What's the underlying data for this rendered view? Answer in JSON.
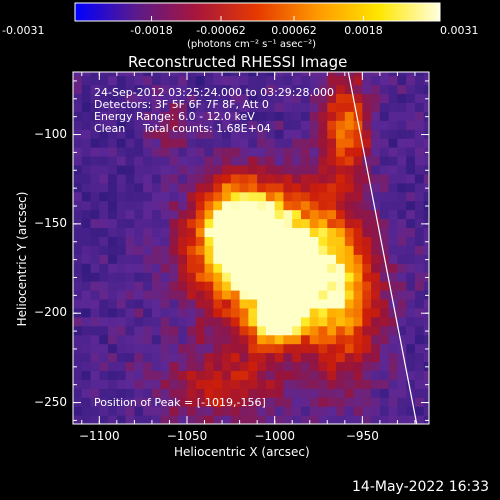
{
  "chart_data": {
    "type": "heatmap",
    "title": "Reconstructed RHESSI Image",
    "colorbar": {
      "min": -0.0031,
      "max": 0.0031,
      "tick_values": [
        -0.0031,
        -0.0018,
        -0.00062,
        0.00062,
        0.0018,
        0.0031
      ],
      "tick_labels": [
        "-0.0031",
        "-0.0018",
        "-0.00062",
        "0.00062",
        "0.0018",
        "0.0031"
      ],
      "units_label": "(photons cm⁻² s⁻¹ asec⁻²)",
      "colors": [
        "#0000ff",
        "#5a1a8c",
        "#a8163c",
        "#e63a00",
        "#ff9a00",
        "#ffe600",
        "#ffffe0"
      ]
    },
    "xlabel": "Heliocentric X (arcsec)",
    "ylabel": "Heliocentric Y (arcsec)",
    "xlim": [
      -1115,
      -912
    ],
    "ylim": [
      -262,
      -65
    ],
    "x_ticks": [
      -1100,
      -1050,
      -1000,
      -950
    ],
    "x_tick_labels": [
      "−1100",
      "−1050",
      "−1000",
      "−950"
    ],
    "y_ticks": [
      -100,
      -150,
      -200,
      -250
    ],
    "y_tick_labels": [
      "−100",
      "−150",
      "−200",
      "−250"
    ],
    "annotations": {
      "time_range": "24-Sep-2012 03:25:24.000 to 03:29:28.000",
      "detectors": "Detectors: 3F 5F 6F 7F 8F, Att 0",
      "energy": "Energy Range: 6.0 - 12.0 keV",
      "clean_label": "Clean",
      "total_counts": "Total counts: 1.68E+04",
      "peak_position": "Position of Peak = [-1019,-156]"
    },
    "peak": {
      "x": -1019,
      "y": -156
    },
    "limb_line": {
      "x": [
        -958,
        -919
      ],
      "y": [
        -65,
        -262
      ]
    },
    "source_blobs": [
      {
        "x": -1020,
        "y": -152,
        "amp": 1.0,
        "sx": 18,
        "sy": 20
      },
      {
        "x": -1005,
        "y": -180,
        "amp": 0.55,
        "sx": 30,
        "sy": 22
      },
      {
        "x": -1000,
        "y": -205,
        "amp": 0.6,
        "sx": 12,
        "sy": 10
      },
      {
        "x": -980,
        "y": -165,
        "amp": 0.5,
        "sx": 20,
        "sy": 28
      },
      {
        "x": -960,
        "y": -200,
        "amp": 0.45,
        "sx": 15,
        "sy": 30
      },
      {
        "x": -960,
        "y": -95,
        "amp": 0.55,
        "sx": 10,
        "sy": 20
      },
      {
        "x": -1030,
        "y": -240,
        "amp": 0.35,
        "sx": 25,
        "sy": 15
      },
      {
        "x": -1060,
        "y": -95,
        "amp": 0.2,
        "sx": 10,
        "sy": 10
      }
    ]
  },
  "footer": {
    "timestamp": "14-May-2022 16:33"
  }
}
